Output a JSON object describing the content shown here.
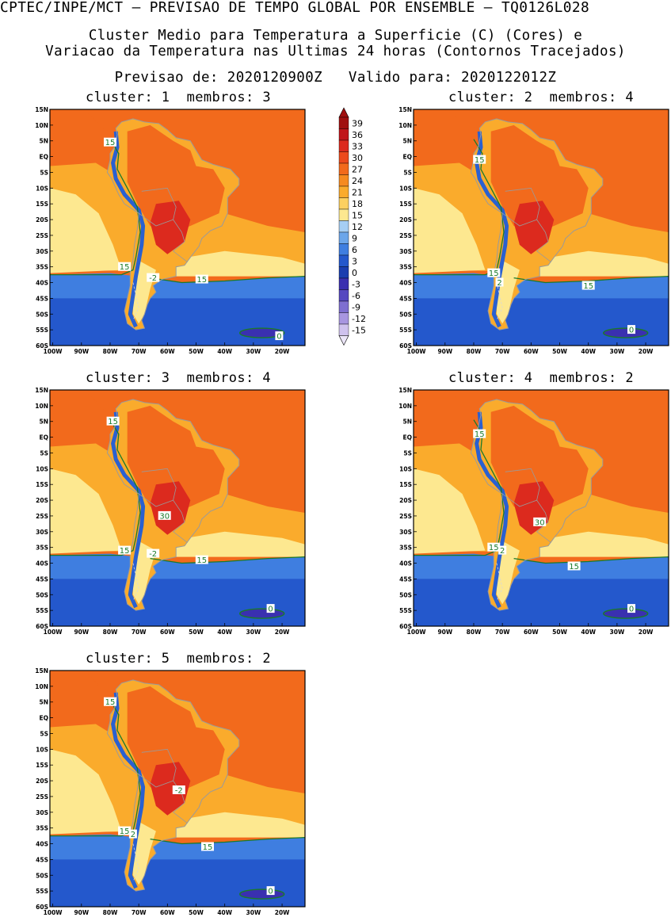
{
  "header": {
    "line1": "CPTEC/INPE/MCT – PREVISAO DE TEMPO GLOBAL POR ENSEMBLE – TQ0126L028",
    "line2": "Cluster Medio para Temperatura a Superficie (C) (Cores) e",
    "line3": "Variacao da Temperatura nas Ultimas 24 horas (Contornos Tracejados)",
    "line4": "Previsao de: 2020120900Z   Valido para: 2020122012Z"
  },
  "axes": {
    "lat_labels": [
      "15N",
      "10N",
      "5N",
      "EQ",
      "5S",
      "10S",
      "15S",
      "20S",
      "25S",
      "30S",
      "35S",
      "40S",
      "45S",
      "50S",
      "55S",
      "60S"
    ],
    "lon_labels": [
      "100W",
      "90W",
      "80W",
      "70W",
      "60W",
      "50W",
      "40W",
      "30W",
      "20W"
    ]
  },
  "legend": {
    "values": [
      "39",
      "36",
      "33",
      "30",
      "27",
      "24",
      "21",
      "18",
      "15",
      "12",
      "9",
      "6",
      "3",
      "0",
      "-3",
      "-6",
      "-9",
      "-12",
      "-15"
    ],
    "colors": [
      "#a01010",
      "#c0151a",
      "#dc2a1e",
      "#ec4a1c",
      "#f26a1c",
      "#f68a20",
      "#faab2c",
      "#fcd060",
      "#fde890",
      "#a6cef4",
      "#6ca6ea",
      "#3f7ee0",
      "#2458cc",
      "#1a3eb0",
      "#3a30b0",
      "#5548c0",
      "#7e6fd0",
      "#a896e0",
      "#cfc2ee"
    ]
  },
  "colors": {
    "ocean_warm": "#f26a1c",
    "land_hot": "#dc2a1e",
    "subtropic": "#faab2c",
    "cool_pacific": "#fde890",
    "southern_ocean": "#3f7ee0",
    "cold": "#2458cc",
    "andes": "#2a60d0",
    "contour_green": "#1a7a2a",
    "border_gray": "#9a9a9a"
  },
  "panels": [
    {
      "title": "cluster: 1  membros: 3",
      "labels": [
        {
          "text": "15",
          "lon": -80,
          "lat": 4.5
        },
        {
          "text": "15",
          "lon": -75,
          "lat": -35
        },
        {
          "text": "15",
          "lon": -48,
          "lat": -39
        },
        {
          "text": "-2",
          "lon": -65,
          "lat": -38.5
        },
        {
          "text": "0",
          "lon": -21,
          "lat": -57
        }
      ]
    },
    {
      "title": "cluster: 2  membros: 4",
      "labels": [
        {
          "text": "15",
          "lon": -78,
          "lat": -1
        },
        {
          "text": "15",
          "lon": -73,
          "lat": -37
        },
        {
          "text": "2",
          "lon": -71,
          "lat": -40
        },
        {
          "text": "15",
          "lon": -40,
          "lat": -41
        },
        {
          "text": "0",
          "lon": -25,
          "lat": -55
        }
      ]
    },
    {
      "title": "cluster: 3  membros: 4",
      "labels": [
        {
          "text": "15",
          "lon": -79,
          "lat": 5
        },
        {
          "text": "30",
          "lon": -61,
          "lat": -25
        },
        {
          "text": "15",
          "lon": -75,
          "lat": -36
        },
        {
          "text": "-2",
          "lon": -65,
          "lat": -37
        },
        {
          "text": "15",
          "lon": -48,
          "lat": -39
        },
        {
          "text": "0",
          "lon": -24,
          "lat": -54.5
        }
      ]
    },
    {
      "title": "cluster: 4  membros: 2",
      "labels": [
        {
          "text": "15",
          "lon": -78,
          "lat": 1
        },
        {
          "text": "30",
          "lon": -57,
          "lat": -27
        },
        {
          "text": "15",
          "lon": -73,
          "lat": -35
        },
        {
          "text": "2",
          "lon": -70,
          "lat": -36
        },
        {
          "text": "15",
          "lon": -45,
          "lat": -41
        },
        {
          "text": "0",
          "lon": -25,
          "lat": -54.5
        }
      ]
    },
    {
      "title": "cluster: 5  membros: 2",
      "labels": [
        {
          "text": "15",
          "lon": -80,
          "lat": 5
        },
        {
          "text": "-2",
          "lon": -56,
          "lat": -23
        },
        {
          "text": "15",
          "lon": -75,
          "lat": -36
        },
        {
          "text": "2",
          "lon": -72,
          "lat": -37
        },
        {
          "text": "15",
          "lon": -46,
          "lat": -41
        },
        {
          "text": "0",
          "lon": -24,
          "lat": -55
        }
      ]
    }
  ]
}
